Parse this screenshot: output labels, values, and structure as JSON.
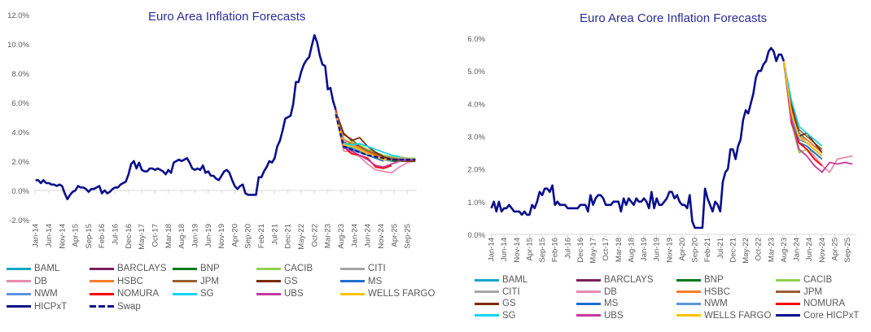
{
  "chart_data": [
    {
      "type": "line",
      "title": "Euro Area Inflation Forecasts",
      "ylim": [
        -2,
        12
      ],
      "yticks": [
        -2,
        0,
        2,
        4,
        6,
        8,
        10,
        12
      ],
      "ytick_format": "percent1",
      "xlabels": [
        "Jan-14",
        "Jun-14",
        "Nov-14",
        "Apr-15",
        "Sep-15",
        "Feb-16",
        "Jul-16",
        "Dec-16",
        "May-17",
        "Oct-17",
        "Mar-18",
        "Aug-18",
        "Jan-19",
        "Jun-19",
        "Nov-19",
        "Apr-20",
        "Sep-20",
        "Feb-21",
        "Jul-21",
        "Dec-21",
        "May-22",
        "Oct-22",
        "Mar-23",
        "Aug-23",
        "Jan-24",
        "Jun-24",
        "Nov-24",
        "Apr-25",
        "Sep-25"
      ],
      "actual": {
        "name": "HICPxT",
        "start": "2014-01",
        "step_months": 1,
        "values": [
          0.7,
          0.7,
          0.5,
          0.7,
          0.5,
          0.5,
          0.4,
          0.4,
          0.3,
          0.4,
          0.3,
          -0.2,
          -0.6,
          -0.3,
          -0.1,
          0.0,
          0.3,
          0.2,
          0.2,
          0.1,
          -0.1,
          0.1,
          0.1,
          0.2,
          0.3,
          -0.2,
          0.0,
          -0.2,
          -0.1,
          0.1,
          0.2,
          0.2,
          0.4,
          0.5,
          0.6,
          1.1,
          1.8,
          2.0,
          1.5,
          1.9,
          1.4,
          1.3,
          1.3,
          1.5,
          1.5,
          1.4,
          1.5,
          1.4,
          1.3,
          1.1,
          1.4,
          1.2,
          1.9,
          2.0,
          2.1,
          2.0,
          2.1,
          2.2,
          1.9,
          1.5,
          1.4,
          1.5,
          1.4,
          1.7,
          1.2,
          1.3,
          1.0,
          1.0,
          0.8,
          0.7,
          1.0,
          1.3,
          1.4,
          1.2,
          0.7,
          0.3,
          0.1,
          0.3,
          0.4,
          -0.2,
          -0.3,
          -0.3,
          -0.3,
          -0.3,
          0.9,
          0.9,
          1.3,
          1.6,
          2.0,
          1.9,
          2.2,
          3.0,
          3.4,
          4.1,
          4.9,
          5.0,
          5.1,
          5.9,
          7.4,
          7.4,
          8.1,
          8.6,
          8.9,
          9.1,
          9.9,
          10.6,
          10.1,
          9.2,
          8.6,
          8.5,
          6.9,
          7.0,
          6.1,
          5.5
        ],
        "color": "#0a0f8c"
      },
      "forecast_start": "2023-06",
      "forecast_step_months": 3,
      "series": [
        {
          "name": "BAML",
          "color": "#12a6c9",
          "values": [
            5.3,
            3.0,
            2.9,
            2.7,
            2.5,
            2.4,
            2.2,
            2.1,
            2.1,
            2.1,
            2.1
          ]
        },
        {
          "name": "BARCLAYS",
          "color": "#7b1e5a",
          "values": [
            5.4,
            3.3,
            3.2,
            2.9,
            2.6,
            2.3,
            2.2,
            2.1,
            2.0,
            2.0
          ]
        },
        {
          "name": "BNP",
          "color": "#007a1e",
          "values": [
            5.3,
            3.1,
            3.3,
            3.0,
            2.6,
            2.3,
            2.1,
            2.0,
            2.0,
            2.0
          ]
        },
        {
          "name": "CACIB",
          "color": "#92d050",
          "values": [
            5.4,
            3.2,
            3.3,
            3.1,
            2.8,
            2.6,
            2.4,
            2.3,
            2.3,
            2.2,
            2.2
          ]
        },
        {
          "name": "CITI",
          "color": "#a5a5a5",
          "values": [
            5.3,
            3.1,
            3.1,
            2.9,
            2.7,
            2.5,
            2.3,
            2.2,
            2.2,
            2.2
          ]
        },
        {
          "name": "DB",
          "color": "#e88aac",
          "values": [
            5.2,
            2.7,
            2.6,
            2.3,
            1.8,
            1.4,
            1.3,
            1.2,
            1.6,
            1.9,
            2.0
          ]
        },
        {
          "name": "HSBC",
          "color": "#f87c28",
          "values": [
            5.3,
            3.5,
            3.2,
            2.9,
            2.6,
            2.4,
            2.2,
            2.1,
            2.1
          ]
        },
        {
          "name": "JPM",
          "color": "#99602f",
          "values": [
            5.4,
            3.8,
            3.5,
            3.0,
            2.7,
            2.5,
            2.3,
            2.2,
            2.1,
            2.1
          ]
        },
        {
          "name": "GS",
          "color": "#7b2c07",
          "values": [
            5.4,
            3.9,
            3.4,
            3.6,
            3.0,
            2.6,
            2.3,
            2.1,
            2.1,
            2.0,
            2.0
          ]
        },
        {
          "name": "MS",
          "color": "#1f6fd0",
          "values": [
            5.2,
            3.0,
            2.8,
            2.6,
            2.4,
            2.2,
            2.0
          ]
        },
        {
          "name": "NWM",
          "color": "#5b95dc",
          "values": [
            5.3,
            3.2,
            3.0,
            2.7,
            2.5,
            2.3,
            2.1,
            2.0
          ]
        },
        {
          "name": "NOMURA",
          "color": "#ff0000",
          "values": [
            5.5,
            3.0,
            2.5,
            2.4,
            2.2,
            1.6,
            1.5,
            1.7
          ]
        },
        {
          "name": "SG",
          "color": "#16d4f0",
          "values": [
            5.3,
            3.2,
            3.1,
            3.2,
            3.0,
            2.8,
            2.6,
            2.4,
            2.3
          ]
        },
        {
          "name": "UBS",
          "color": "#c4399a",
          "values": [
            5.3,
            2.9,
            2.7,
            2.4,
            2.1,
            1.7,
            1.6,
            1.8,
            2.0,
            2.1,
            2.1
          ]
        },
        {
          "name": "WELLS FARGO",
          "color": "#ffc000",
          "values": [
            5.3,
            3.1,
            3.0,
            2.8,
            2.5,
            2.3,
            2.1,
            2.1
          ]
        },
        {
          "name": "Swap",
          "color": "#0a0f8c",
          "dashed": true,
          "values": [
            5.2,
            3.0,
            2.8,
            2.6,
            2.4,
            2.3,
            2.2,
            2.1,
            2.1,
            2.1,
            2.1
          ]
        }
      ],
      "legend": [
        "BAML",
        "BARCLAYS",
        "BNP",
        "CACIB",
        "CITI",
        "DB",
        "HSBC",
        "JPM",
        "GS",
        "MS",
        "NWM",
        "NOMURA",
        "SG",
        "UBS",
        "WELLS FARGO",
        "HICPxT",
        "Swap"
      ],
      "legend_placement": "bottom"
    },
    {
      "type": "line",
      "title": "Euro Area Core Inflation Forecasts",
      "ylim": [
        0,
        6
      ],
      "yticks": [
        0,
        1,
        2,
        3,
        4,
        5,
        6
      ],
      "ytick_format": "percent1",
      "xlabels": [
        "Jan-14",
        "Jun-14",
        "Nov-14",
        "Apr-15",
        "Sep-15",
        "Feb-16",
        "Jul-16",
        "Dec-16",
        "May-17",
        "Oct-17",
        "Mar-18",
        "Aug-18",
        "Jan-19",
        "Jun-19",
        "Nov-19",
        "Apr-20",
        "Sep-20",
        "Feb-21",
        "Jul-21",
        "Dec-21",
        "May-22",
        "Oct-22",
        "Mar-23",
        "Aug-23",
        "Jan-24",
        "Jun-24",
        "Nov-24",
        "Apr-25",
        "Sep-25"
      ],
      "actual": {
        "name": "Core HICPxT",
        "start": "2014-01",
        "step_months": 1,
        "values": [
          0.8,
          1.0,
          0.7,
          1.0,
          0.7,
          0.8,
          0.8,
          0.9,
          0.8,
          0.7,
          0.7,
          0.7,
          0.6,
          0.7,
          0.6,
          0.6,
          0.9,
          0.8,
          1.0,
          1.3,
          1.2,
          1.4,
          1.4,
          1.3,
          1.5,
          0.9,
          1.0,
          0.9,
          0.9,
          0.9,
          0.8,
          0.8,
          0.8,
          0.8,
          0.8,
          0.9,
          0.9,
          0.9,
          0.7,
          1.2,
          0.9,
          1.1,
          1.2,
          1.2,
          1.1,
          0.9,
          0.9,
          0.9,
          1.0,
          1.0,
          1.0,
          0.7,
          1.1,
          0.9,
          1.1,
          1.0,
          0.9,
          1.1,
          1.0,
          1.0,
          1.1,
          1.0,
          0.8,
          1.3,
          0.8,
          1.1,
          0.9,
          0.9,
          1.0,
          1.1,
          1.3,
          1.3,
          1.1,
          1.2,
          1.0,
          0.9,
          0.9,
          0.8,
          1.2,
          0.4,
          0.2,
          0.2,
          0.2,
          0.2,
          1.4,
          1.1,
          0.9,
          0.7,
          1.0,
          0.9,
          0.7,
          1.6,
          1.9,
          2.0,
          2.6,
          2.6,
          2.3,
          2.7,
          2.9,
          3.5,
          3.8,
          3.7,
          4.0,
          4.3,
          4.8,
          5.0,
          5.0,
          5.2,
          5.3,
          5.6,
          5.7,
          5.6,
          5.3,
          5.5,
          5.5,
          5.3
        ],
        "color": "#0a0f8c"
      },
      "forecast_start": "2023-08",
      "forecast_step_months": 3,
      "series": [
        {
          "name": "BAML",
          "color": "#12a6c9",
          "values": [
            5.3,
            3.9,
            3.1,
            2.9,
            2.7,
            2.6
          ]
        },
        {
          "name": "BARCLAYS",
          "color": "#7b1e5a",
          "values": [
            5.3,
            3.6,
            3.0,
            2.8,
            2.6,
            2.4
          ]
        },
        {
          "name": "BNP",
          "color": "#007a1e",
          "values": [
            5.3,
            3.5,
            2.8,
            2.7,
            2.5,
            2.3
          ]
        },
        {
          "name": "CACIB",
          "color": "#92d050",
          "values": [
            5.3,
            3.4,
            2.5,
            2.6,
            2.5,
            2.3
          ]
        },
        {
          "name": "CITI",
          "color": "#a5a5a5",
          "values": [
            5.3,
            3.7,
            2.9,
            2.8,
            2.6,
            2.4
          ]
        },
        {
          "name": "DB",
          "color": "#e88aac",
          "values": [
            5.2,
            3.6,
            2.8,
            2.6,
            2.4,
            2.1,
            1.9,
            2.3,
            2.35,
            2.4
          ]
        },
        {
          "name": "HSBC",
          "color": "#f87c28",
          "values": [
            5.3,
            3.8,
            3.0,
            2.9,
            2.7,
            2.5
          ]
        },
        {
          "name": "JPM",
          "color": "#99602f",
          "values": [
            5.3,
            3.9,
            3.2,
            3.0,
            2.8,
            2.6
          ]
        },
        {
          "name": "GS",
          "color": "#7b2c07",
          "values": [
            5.3,
            4.0,
            3.0,
            3.1,
            2.8,
            2.5
          ]
        },
        {
          "name": "MS",
          "color": "#1f6fd0",
          "values": [
            5.3,
            3.5,
            2.8,
            2.7,
            2.5,
            2.3
          ]
        },
        {
          "name": "NWM",
          "color": "#5b95dc",
          "values": [
            5.3,
            3.6,
            2.9,
            2.8,
            2.6,
            2.4
          ]
        },
        {
          "name": "NOMURA",
          "color": "#ff0000",
          "values": [
            5.3,
            3.4,
            2.8,
            2.6,
            2.3,
            2.1
          ]
        },
        {
          "name": "SG",
          "color": "#16d4f0",
          "values": [
            5.3,
            4.1,
            3.3,
            3.1,
            2.9,
            2.7
          ]
        },
        {
          "name": "UBS",
          "color": "#c4399a",
          "values": [
            5.3,
            3.5,
            2.6,
            2.4,
            2.1,
            1.9,
            2.2,
            2.15,
            2.2,
            2.15
          ]
        },
        {
          "name": "WELLS FARGO",
          "color": "#ffc000",
          "values": [
            5.3,
            3.7,
            3.0,
            2.8,
            2.6,
            2.4
          ]
        }
      ],
      "legend": [
        "BAML",
        "BARCLAYS",
        "BNP",
        "CACIB",
        "CITI",
        "DB",
        "HSBC",
        "JPM",
        "GS",
        "MS",
        "NWM",
        "NOMURA",
        "SG",
        "UBS",
        "WELLS FARGO",
        "Core HICPxT"
      ],
      "legend_placement": "bottom"
    }
  ]
}
